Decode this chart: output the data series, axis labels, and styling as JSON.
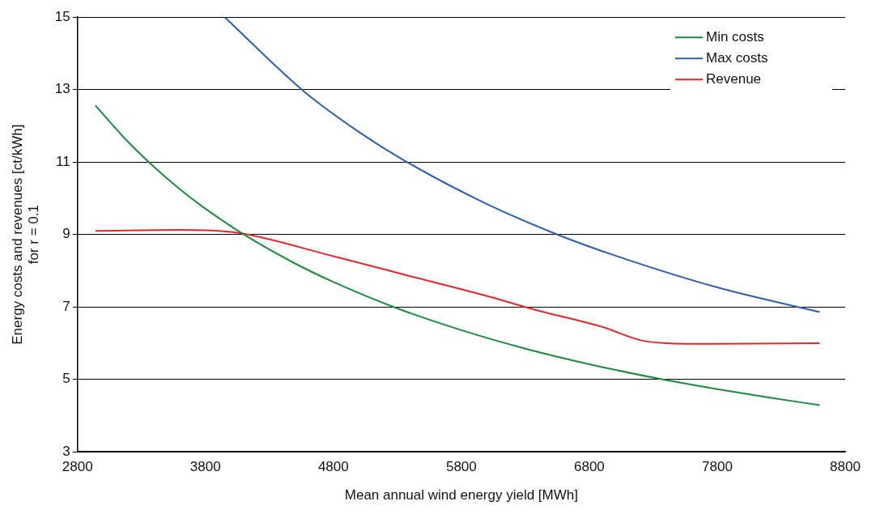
{
  "chart_data": {
    "type": "line",
    "xlabel": "Mean annual wind energy yield [MWh]",
    "ylabel": "Energy costs and revenues [ct/kWh]\nfor r = 0.1",
    "xlim": [
      2800,
      8800
    ],
    "xticks": [
      2800,
      3800,
      4800,
      5800,
      6800,
      7800,
      8800
    ],
    "ylim": [
      3,
      15
    ],
    "yticks": [
      3,
      5,
      7,
      9,
      11,
      13,
      15
    ],
    "grid": "y",
    "legend": "top right",
    "marker": "none",
    "line_style": "solid",
    "series": [
      {
        "name": "Min costs",
        "color": "#1a8a3c",
        "x": [
          2940,
          3200,
          3400,
          3600,
          3800,
          4100,
          4500,
          4800,
          5300,
          5800,
          6300,
          6800,
          7400,
          7800,
          8200,
          8600
        ],
        "values": [
          12.56,
          11.54,
          10.86,
          10.25,
          9.71,
          9.0,
          8.2,
          7.69,
          6.96,
          6.36,
          5.85,
          5.42,
          4.98,
          4.73,
          4.5,
          4.29
        ]
      },
      {
        "name": "Max costs",
        "color": "#2d5fb0",
        "x": [
          3950,
          4570,
          5000,
          5360,
          6000,
          6550,
          7000,
          7800,
          8600
        ],
        "values": [
          15,
          12.95,
          11.83,
          11.03,
          9.84,
          9,
          8.42,
          7.54,
          6.86
        ]
      },
      {
        "name": "Revenue",
        "color": "#e8252a",
        "x": [
          2940,
          3600,
          3900,
          4100,
          4800,
          5400,
          6000,
          6400,
          6900,
          7200,
          7400,
          7800,
          8600
        ],
        "values": [
          9.1,
          9.13,
          9.1,
          9.02,
          8.4,
          7.85,
          7.3,
          6.9,
          6.45,
          6.08,
          6.0,
          5.98,
          6.0
        ]
      }
    ]
  }
}
